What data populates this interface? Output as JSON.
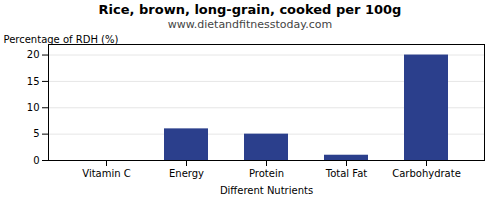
{
  "chart_data": {
    "type": "bar",
    "title": "Rice, brown, long-grain, cooked per 100g",
    "subtitle": "www.dietandfitnesstoday.com",
    "xlabel": "Different Nutrients",
    "ylabel": "Percentage of RDH (%)",
    "categories": [
      "Vitamin C",
      "Energy",
      "Protein",
      "Total Fat",
      "Carbohydrate"
    ],
    "values": [
      0,
      6,
      5,
      1,
      20
    ],
    "color": "#2b3f8c",
    "ylim": [
      0,
      22
    ],
    "yticks": [
      0,
      5,
      10,
      15,
      20
    ],
    "grid": true
  }
}
